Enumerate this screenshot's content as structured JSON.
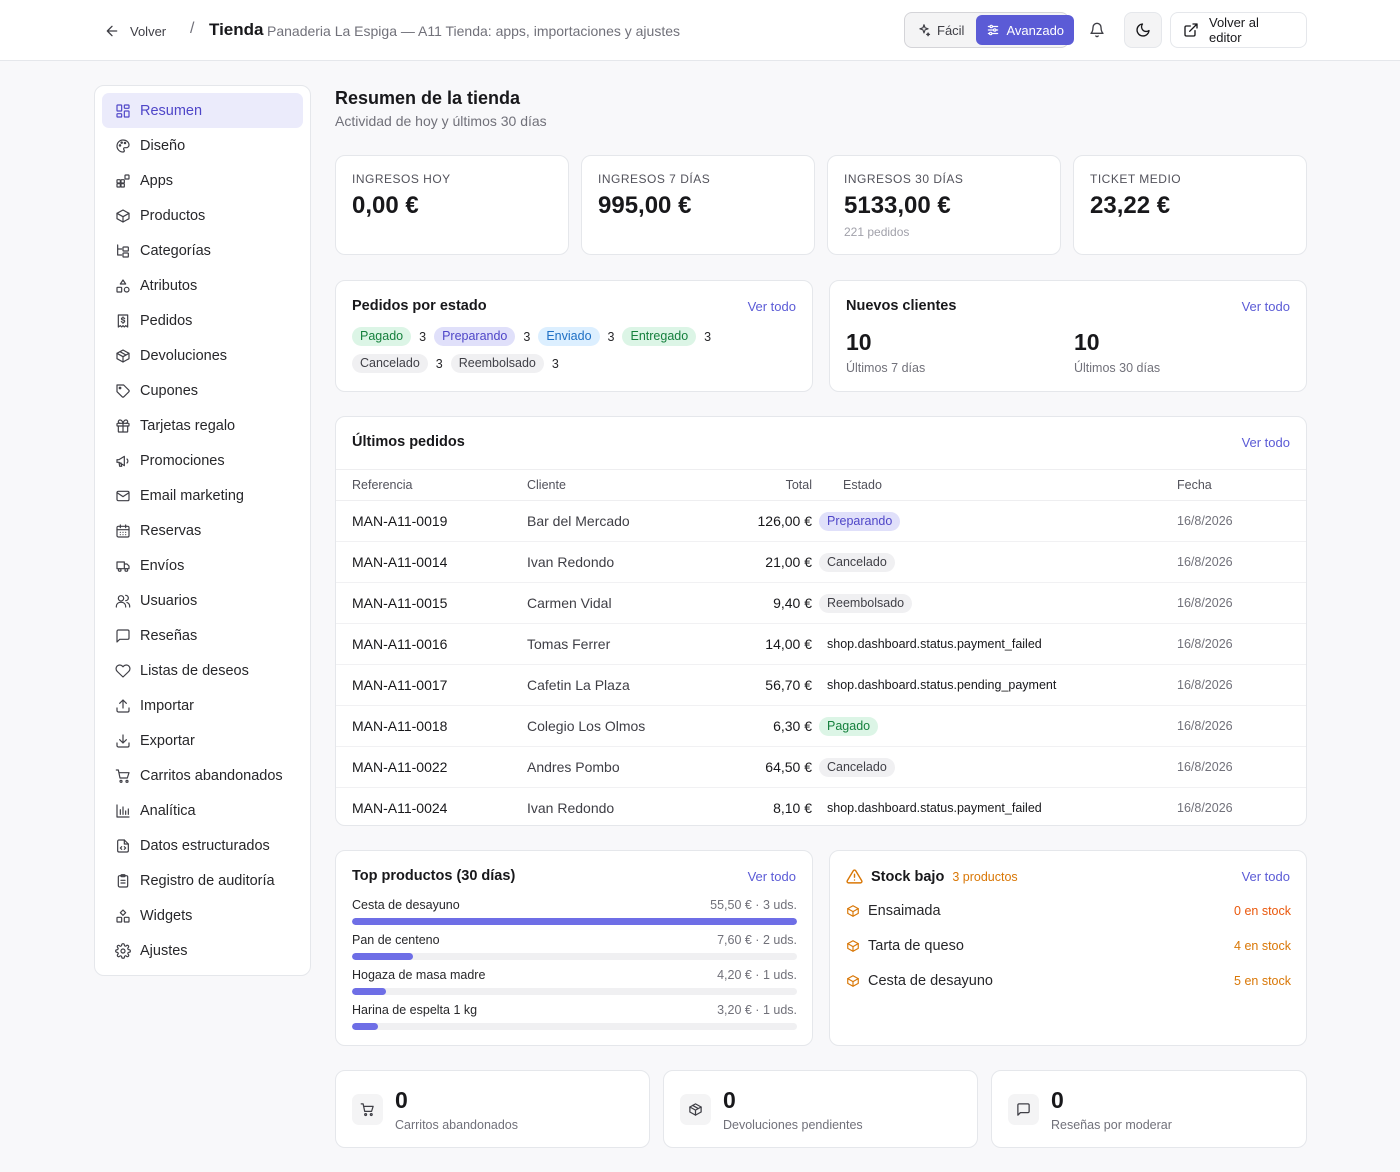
{
  "header": {
    "back_label": "Volver",
    "separator": "/",
    "title": "Tienda",
    "subtitle": "Panaderia La Espiga — A11 Tienda: apps, importaciones y ajustes",
    "mode_easy": "Fácil",
    "mode_advanced": "Avanzado",
    "editor_label": "Volver al editor"
  },
  "sidebar": {
    "items": [
      {
        "label": "Resumen",
        "icon": "dashboard-icon"
      },
      {
        "label": "Diseño",
        "icon": "palette-icon"
      },
      {
        "label": "Apps",
        "icon": "apps-icon"
      },
      {
        "label": "Productos",
        "icon": "box-icon"
      },
      {
        "label": "Categorías",
        "icon": "tree-icon"
      },
      {
        "label": "Atributos",
        "icon": "shapes-icon"
      },
      {
        "label": "Pedidos",
        "icon": "receipt-icon"
      },
      {
        "label": "Devoluciones",
        "icon": "package-return-icon"
      },
      {
        "label": "Cupones",
        "icon": "tag-icon"
      },
      {
        "label": "Tarjetas regalo",
        "icon": "gift-icon"
      },
      {
        "label": "Promociones",
        "icon": "megaphone-icon"
      },
      {
        "label": "Email marketing",
        "icon": "mail-icon"
      },
      {
        "label": "Reservas",
        "icon": "calendar-icon"
      },
      {
        "label": "Envíos",
        "icon": "truck-icon"
      },
      {
        "label": "Usuarios",
        "icon": "users-icon"
      },
      {
        "label": "Reseñas",
        "icon": "message-icon"
      },
      {
        "label": "Listas de deseos",
        "icon": "heart-icon"
      },
      {
        "label": "Importar",
        "icon": "upload-icon"
      },
      {
        "label": "Exportar",
        "icon": "download-icon"
      },
      {
        "label": "Carritos abandonados",
        "icon": "cart-icon"
      },
      {
        "label": "Analítica",
        "icon": "chart-icon"
      },
      {
        "label": "Datos estructurados",
        "icon": "file-code-icon"
      },
      {
        "label": "Registro de auditoría",
        "icon": "clipboard-icon"
      },
      {
        "label": "Widgets",
        "icon": "widgets-icon"
      },
      {
        "label": "Ajustes",
        "icon": "gear-icon"
      }
    ]
  },
  "main": {
    "title": "Resumen de la tienda",
    "subtitle": "Actividad de hoy y últimos 30 días"
  },
  "kpis": [
    {
      "label": "INGRESOS HOY",
      "value": "0,00 €",
      "note": ""
    },
    {
      "label": "INGRESOS 7 DÍAS",
      "value": "995,00 €",
      "note": ""
    },
    {
      "label": "INGRESOS 30 DÍAS",
      "value": "5133,00 €",
      "note": "221 pedidos"
    },
    {
      "label": "TICKET MEDIO",
      "value": "23,22 €",
      "note": ""
    }
  ],
  "status_card": {
    "title": "Pedidos por estado",
    "link": "Ver todo",
    "items": [
      {
        "label": "Pagado",
        "count": "3"
      },
      {
        "label": "Preparando",
        "count": "3"
      },
      {
        "label": "Enviado",
        "count": "3"
      },
      {
        "label": "Entregado",
        "count": "3"
      },
      {
        "label": "Cancelado",
        "count": "3"
      },
      {
        "label": "Reembolsado",
        "count": "3"
      }
    ]
  },
  "clients_card": {
    "title": "Nuevos clientes",
    "link": "Ver todo",
    "week_value": "10",
    "week_label": "Últimos 7 días",
    "month_value": "10",
    "month_label": "Últimos 30 días"
  },
  "orders_card": {
    "title": "Últimos pedidos",
    "link": "Ver todo",
    "columns": [
      "Referencia",
      "Cliente",
      "Total",
      "Estado",
      "Fecha"
    ],
    "rows": [
      {
        "ref": "MAN-A11-0019",
        "client": "Bar del Mercado",
        "total": "126,00 €",
        "status": "Preparando",
        "date": "16/8/2026"
      },
      {
        "ref": "MAN-A11-0014",
        "client": "Ivan Redondo",
        "total": "21,00 €",
        "status": "Cancelado",
        "date": "16/8/2026"
      },
      {
        "ref": "MAN-A11-0015",
        "client": "Carmen Vidal",
        "total": "9,40 €",
        "status": "Reembolsado",
        "date": "16/8/2026"
      },
      {
        "ref": "MAN-A11-0016",
        "client": "Tomas Ferrer",
        "total": "14,00 €",
        "status": "shop.dashboard.status.payment_failed",
        "date": "16/8/2026"
      },
      {
        "ref": "MAN-A11-0017",
        "client": "Cafetin La Plaza",
        "total": "56,70 €",
        "status": "shop.dashboard.status.pending_payment",
        "date": "16/8/2026"
      },
      {
        "ref": "MAN-A11-0018",
        "client": "Colegio Los Olmos",
        "total": "6,30 €",
        "status": "Pagado",
        "date": "16/8/2026"
      },
      {
        "ref": "MAN-A11-0022",
        "client": "Andres Pombo",
        "total": "64,50 €",
        "status": "Cancelado",
        "date": "16/8/2026"
      },
      {
        "ref": "MAN-A11-0024",
        "client": "Ivan Redondo",
        "total": "8,10 €",
        "status": "shop.dashboard.status.payment_failed",
        "date": "16/8/2026"
      }
    ]
  },
  "top_products": {
    "title": "Top productos (30 días)",
    "link": "Ver todo",
    "items": [
      {
        "name": "Cesta de desayuno",
        "meta": "55,50 € · 3 uds.",
        "share": 1.0
      },
      {
        "name": "Pan de centeno",
        "meta": "7,60 € · 2 uds.",
        "share": 0.137
      },
      {
        "name": "Hogaza de masa madre",
        "meta": "4,20 € · 1 uds.",
        "share": 0.076
      },
      {
        "name": "Harina de espelta 1 kg",
        "meta": "3,20 € · 1 uds.",
        "share": 0.058
      }
    ]
  },
  "low_stock": {
    "title": "Stock bajo",
    "count_label": "3 productos",
    "link": "Ver todo",
    "items": [
      {
        "name": "Ensaimada",
        "qty": "0 en stock"
      },
      {
        "name": "Tarta de queso",
        "qty": "4 en stock"
      },
      {
        "name": "Cesta de desayuno",
        "qty": "5 en stock"
      }
    ]
  },
  "mini_stats": [
    {
      "value": "0",
      "label": "Carritos abandonados",
      "icon": "cart-icon"
    },
    {
      "value": "0",
      "label": "Devoluciones pendientes",
      "icon": "package-return-icon"
    },
    {
      "value": "0",
      "label": "Reseñas por moderar",
      "icon": "message-icon"
    }
  ],
  "colors": {
    "accent": "#5b5bd6",
    "warning": "#d97706",
    "success": "#15803d"
  }
}
